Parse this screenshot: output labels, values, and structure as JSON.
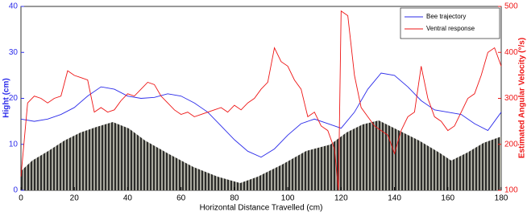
{
  "chart_data": {
    "type": "line",
    "xlabel": "Horizontal Distance Travelled (cm)",
    "ylabel": "Hight (cm)",
    "y2label": "Estimated Angular Velocity (°/s)",
    "xlim": [
      0,
      180
    ],
    "xticks": [
      0,
      20,
      40,
      60,
      80,
      100,
      120,
      140,
      160,
      180
    ],
    "ylim": [
      0,
      40
    ],
    "yticks": [
      0,
      10,
      20,
      30,
      40
    ],
    "y2lim": [
      100,
      500
    ],
    "y2ticks": [
      100,
      200,
      300,
      400,
      500
    ],
    "legend": "upper right",
    "series": [
      {
        "name": "Bee trajectory",
        "color": "#2b2bea",
        "x": [
          0,
          5,
          10,
          15,
          20,
          25,
          30,
          35,
          40,
          45,
          50,
          55,
          60,
          65,
          70,
          75,
          80,
          85,
          90,
          95,
          100,
          105,
          110,
          115,
          120,
          125,
          130,
          135,
          140,
          145,
          150,
          155,
          160,
          165,
          170,
          175,
          180
        ],
        "values": [
          15.5,
          15,
          15.5,
          16.5,
          18,
          20.5,
          22.5,
          22,
          20.5,
          20,
          20.2,
          21,
          20.5,
          19,
          17,
          14,
          11,
          8.5,
          7.2,
          9,
          12,
          14.5,
          15.5,
          14.5,
          13.5,
          17,
          22,
          25.5,
          25,
          22.5,
          19.5,
          17.5,
          17,
          16.5,
          14.5,
          13,
          17
        ]
      },
      {
        "name": "Ventral response",
        "color": "#ee1515",
        "axis": "y2",
        "x": [
          0,
          2.5,
          5,
          7.5,
          10,
          12.5,
          15,
          17.5,
          20,
          22.5,
          25,
          27.5,
          30,
          32.5,
          35,
          37.5,
          40,
          42.5,
          45,
          47.5,
          50,
          52.5,
          55,
          57.5,
          60,
          62.5,
          65,
          67.5,
          70,
          72.5,
          75,
          77.5,
          80,
          82.5,
          85,
          87.5,
          90,
          92.5,
          95,
          97.5,
          100,
          102.5,
          105,
          107.5,
          110,
          112.5,
          115,
          117.5,
          119,
          120,
          122.5,
          125,
          127.5,
          130,
          132.5,
          135,
          137.5,
          140,
          142.5,
          145,
          147.5,
          150,
          152.5,
          155,
          157.5,
          160,
          162.5,
          165,
          167.5,
          170,
          172.5,
          175,
          177.5,
          180
        ],
        "values": [
          130,
          290,
          305,
          300,
          290,
          300,
          305,
          360,
          350,
          345,
          340,
          270,
          280,
          270,
          275,
          295,
          310,
          305,
          320,
          335,
          330,
          305,
          290,
          275,
          265,
          270,
          260,
          265,
          270,
          275,
          280,
          270,
          285,
          275,
          290,
          300,
          320,
          335,
          410,
          380,
          370,
          340,
          320,
          260,
          270,
          240,
          230,
          190,
          100,
          490,
          480,
          350,
          280,
          260,
          240,
          230,
          220,
          180,
          230,
          260,
          270,
          370,
          300,
          260,
          250,
          230,
          240,
          270,
          300,
          310,
          350,
          400,
          410,
          370
        ]
      }
    ]
  }
}
